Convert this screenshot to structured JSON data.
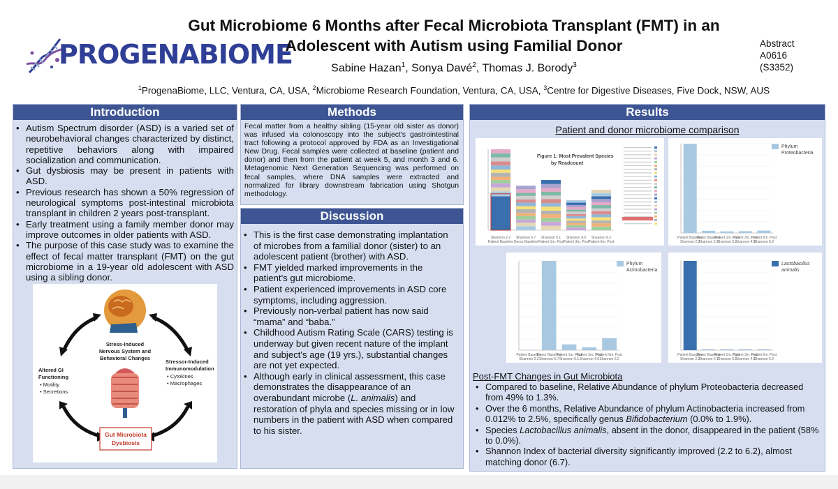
{
  "header": {
    "logo_text": "PROGENABIOME",
    "title_line1": "Gut Microbiome 6 Months after Fecal Microbiota Transplant (FMT) in an",
    "title_line2": "Adolescent with Autism using Familial Donor",
    "authors": [
      {
        "name": "Sabine Hazan",
        "sup": "1"
      },
      {
        "name": "Sonya Davé",
        "sup": "2"
      },
      {
        "name": "Thomas J. Borody",
        "sup": "3"
      }
    ],
    "affiliations": [
      {
        "sup": "1",
        "text": "ProgenaBiome, LLC, Ventura, CA, USA, "
      },
      {
        "sup": "2",
        "text": "Microbiome Research Foundation, Ventura, CA, USA, "
      },
      {
        "sup": "3",
        "text": "Centre for Digestive Diseases, Five Dock, NSW, AUS"
      }
    ],
    "abstract_label": "Abstract",
    "abstract_id": "A0616",
    "abstract_code": "(S3352)"
  },
  "introduction": {
    "heading": "Introduction",
    "bullets": [
      "Autism Spectrum disorder (ASD) is a varied set of neurobehavioral changes characterized by distinct, repetitive behaviors along with impaired socialization and communication.",
      "Gut dysbiosis may be present in patients with ASD.",
      "Previous research has shown a 50% regression of neurological symptoms post-intestinal microbiota transplant in children 2 years post-transplant.",
      "Early treatment using a family member donor may improve outcomes in older patients with ASD.",
      "The purpose of this case study was to examine the effect of fecal matter transplant (FMT) on the gut microbiome in a 19-year old adolescent with ASD using a sibling donor."
    ],
    "diagram": {
      "top_label_1": "Stress-Induced",
      "top_label_2": "Nervous System and",
      "top_label_3": "Behavioral Changes",
      "left_label_1": "Altered GI",
      "left_label_2": "Functioning",
      "left_items": [
        "Motility",
        "Secretions"
      ],
      "right_label_1": "Stressor-Induced",
      "right_label_2": "Immunomodulation",
      "right_items": [
        "Cytokines",
        "Macrophages"
      ],
      "bottom_label_1": "Gut Microbiota",
      "bottom_label_2": "Dysbiosis"
    }
  },
  "methods": {
    "heading": "Methods",
    "text": "Fecal matter from a healthy sibling (15-year old sister as donor) was infused via colonoscopy into the subject's gastrointestinal tract following a protocol approved by FDA as an Investigational New Drug. Fecal samples were collected at baseline (patient and donor) and then from the patient at week 5, and month 3 and 6. Metagenomic Next Generation Sequencing was performed on fecal samples, where DNA samples were extracted and normalized for library downstream fabrication using Shotgun methodology."
  },
  "discussion": {
    "heading": "Discussion",
    "bullets": [
      {
        "parts": [
          {
            "t": "This is the first case demonstrating implantation of microbes from a familial donor (sister) to an adolescent patient (brother) with ASD."
          }
        ]
      },
      {
        "parts": [
          {
            "t": "FMT yielded marked improvements in the patient's gut microbiome."
          }
        ]
      },
      {
        "parts": [
          {
            "t": "Patient experienced improvements in ASD core symptoms, including aggression."
          }
        ]
      },
      {
        "parts": [
          {
            "t": "Previously non-verbal patient has now said “mama” and “baba.”"
          }
        ]
      },
      {
        "parts": [
          {
            "t": "Childhood Autism Rating Scale (CARS) testing is underway but given recent nature of the implant and subject's age (19 yrs.), substantial changes are not yet expected."
          }
        ]
      },
      {
        "parts": [
          {
            "t": "Although early in clinical assessment, this case demonstrates the disappearance of an overabundant microbe ("
          },
          {
            "t": "L. animalis",
            "i": true
          },
          {
            "t": ") and restoration of phyla and species missing or in low numbers in the patient with ASD when compared to his sister."
          }
        ]
      }
    ]
  },
  "results": {
    "heading": "Results",
    "subheading": "Patient and donor microbiome comparison",
    "fig1_title_1": "Figure 1: Most Prevalent Species",
    "fig1_title_2": "by Readcount",
    "chart_data": [
      {
        "type": "bar",
        "title": "Figure 1: Most Prevalent Species by Readcount",
        "stacked": true,
        "categories": [
          "Patient Baseline Shannon 2.2",
          "Donor Baseline Shannon 6.7",
          "Patient 1m. Post Shannon 5.1",
          "Patient 3m. Post Shannon 4.0",
          "Patient 6m. Post Shannon 6.2"
        ],
        "values": [
          1.0,
          0.55,
          0.62,
          0.37,
          0.5
        ]
      },
      {
        "type": "bar",
        "categories": [
          "Patient Baseline Shannon 2.2",
          "Donor Baseline Shannon 6.7",
          "Patient 1m. Post Shannon 5.1",
          "Patient 3m. Post Shannon 4.0",
          "Patient 6m. Post Shannon 6.2"
        ],
        "series": [
          {
            "name": "Phylum Proteobacteria",
            "values": [
              49,
              1.2,
              0.9,
              1.0,
              1.3
            ]
          }
        ],
        "color": "#a9c9e2"
      },
      {
        "type": "bar",
        "categories": [
          "Patient Baseline Shannon 2.2",
          "Donor Baseline Shannon 6.7",
          "Patient 1m. Post Shannon 5.1",
          "Patient 3m. Post Shannon 4.0",
          "Patient 6m. Post Shannon 6.2"
        ],
        "series": [
          {
            "name": "Phylum Actinobacteria",
            "values": [
              0.012,
              18.5,
              1.2,
              0.6,
              2.5
            ]
          }
        ],
        "color": "#a9c9e2"
      },
      {
        "type": "bar",
        "categories": [
          "Patient Baseline Shannon 2.2",
          "Donor Baseline Shannon 6.7",
          "Patient 1m. Post Shannon 5.1",
          "Patient 3m. Post Shannon 4.0",
          "Patient 6m. Post Shannon 6.2"
        ],
        "series": [
          {
            "name": "Lactobacillus animalis",
            "values": [
              58,
              0,
              0,
              0,
              0
            ]
          }
        ],
        "color": "#3a6fae"
      }
    ],
    "post_heading": "Post-FMT Changes in Gut Microbiota",
    "post_bullets": [
      {
        "parts": [
          {
            "t": "Compared to baseline, Relative Abundance of phylum Proteobacteria decreased from 49% to 1.3%."
          }
        ]
      },
      {
        "parts": [
          {
            "t": "Over the 6 months, Relative Abundance of phylum Actinobacteria increased from 0.012% to 2.5%, specifically genus "
          },
          {
            "t": "Bifidobacterium",
            "i": true
          },
          {
            "t": " (0.0% to 1.9%)."
          }
        ]
      },
      {
        "parts": [
          {
            "t": "Species "
          },
          {
            "t": "Lactobacillus animalis",
            "i": true
          },
          {
            "t": ", absent in the donor, disappeared in the patient (58% to 0.0%)."
          }
        ]
      },
      {
        "parts": [
          {
            "t": "Shannon Index of bacterial diversity significantly improved (2.2 to 6.2), almost matching donor (6.7)."
          }
        ]
      }
    ]
  },
  "colors": {
    "heading_bg": "#3d5593",
    "panel_bg": "#d6def0",
    "logo": "#2f3f96",
    "bar_light": "#a9c9e2",
    "bar_dark": "#3a6fae"
  }
}
